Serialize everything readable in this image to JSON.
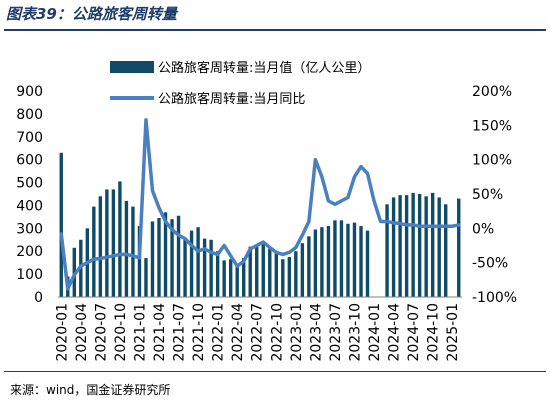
{
  "header": {
    "title": "图表39：公路旅客周转量"
  },
  "footer": {
    "source": "来源：wind，国金证券研究所"
  },
  "colors": {
    "bar": "#0f4a66",
    "line": "#4a7fc2",
    "title": "#1f3d6b"
  },
  "chart_data": {
    "type": "bar+line",
    "title": "",
    "legend_position": "top",
    "grid": false,
    "y_left": {
      "min": 0,
      "max": 900,
      "ticks": [
        "0",
        "100",
        "200",
        "300",
        "400",
        "500",
        "600",
        "700",
        "800",
        "900"
      ]
    },
    "y_right": {
      "min": -100,
      "max": 200,
      "unit": "%",
      "ticks": [
        "-100%",
        "-50%",
        "0%",
        "50%",
        "100%",
        "150%",
        "200%"
      ]
    },
    "x_tick_labels": [
      "2020-01",
      "2020-04",
      "2020-07",
      "2020-10",
      "2021-01",
      "2021-04",
      "2021-07",
      "2021-10",
      "2022-01",
      "2022-04",
      "2022-07",
      "2022-10",
      "2023-01",
      "2023-04",
      "2023-07",
      "2023-10",
      "2024-01",
      "2024-04",
      "2024-07",
      "2024-10",
      "2025-01"
    ],
    "categories": [
      "2020-01",
      "2020-02",
      "2020-03",
      "2020-04",
      "2020-05",
      "2020-06",
      "2020-07",
      "2020-08",
      "2020-09",
      "2020-10",
      "2020-11",
      "2020-12",
      "2021-01",
      "2021-02",
      "2021-03",
      "2021-04",
      "2021-05",
      "2021-06",
      "2021-07",
      "2021-08",
      "2021-09",
      "2021-10",
      "2021-11",
      "2021-12",
      "2022-01",
      "2022-02",
      "2022-03",
      "2022-04",
      "2022-05",
      "2022-06",
      "2022-07",
      "2022-08",
      "2022-09",
      "2022-10",
      "2022-11",
      "2022-12",
      "2023-01",
      "2023-02",
      "2023-03",
      "2023-04",
      "2023-05",
      "2023-06",
      "2023-07",
      "2023-08",
      "2023-09",
      "2023-10",
      "2023-11",
      "2023-12",
      "2024-01",
      "2024-02",
      "2024-03",
      "2024-04",
      "2024-05",
      "2024-06",
      "2024-07",
      "2024-08",
      "2024-09",
      "2024-10",
      "2024-11",
      "2024-12",
      "2025-01",
      "2025-02"
    ],
    "series": [
      {
        "name": "公路旅客周转量:当月值（亿人公里）",
        "axis": "left",
        "kind": "bar",
        "values": [
          630,
          90,
          215,
          250,
          300,
          395,
          440,
          470,
          470,
          505,
          420,
          395,
          310,
          170,
          330,
          345,
          370,
          340,
          355,
          250,
          290,
          305,
          255,
          250,
          200,
          160,
          165,
          130,
          170,
          220,
          225,
          230,
          210,
          190,
          165,
          175,
          200,
          235,
          265,
          295,
          305,
          310,
          335,
          335,
          320,
          325,
          310,
          290,
          null,
          null,
          405,
          435,
          445,
          445,
          455,
          450,
          440,
          455,
          435,
          405,
          null,
          430
        ]
      },
      {
        "name": "公路旅客周转量:当月同比",
        "axis": "right",
        "kind": "line",
        "values": [
          -8,
          -88,
          -68,
          -55,
          -50,
          -45,
          -44,
          -42,
          -40,
          -38,
          -38,
          -40,
          -43,
          158,
          55,
          30,
          10,
          -2,
          -10,
          -15,
          -25,
          -33,
          -30,
          -35,
          -38,
          -25,
          -40,
          -55,
          -48,
          -30,
          -25,
          -20,
          -28,
          -35,
          -38,
          -35,
          -28,
          -10,
          10,
          100,
          75,
          40,
          35,
          40,
          45,
          75,
          90,
          80,
          40,
          10,
          10,
          8,
          7,
          5,
          5,
          3,
          3,
          3,
          3,
          3,
          3,
          5
        ]
      }
    ]
  }
}
